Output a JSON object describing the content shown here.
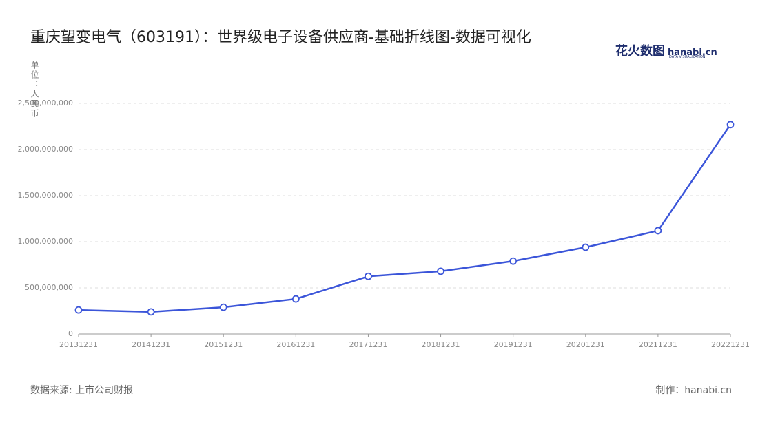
{
  "chart_data": {
    "type": "line",
    "title": "重庆望变电气（603191）：世界级电子设备供应商-基础折线图-数据可视化",
    "y_axis_label": "单位：人民币",
    "logo": "花火数图",
    "logo_sub": "hanabi.cn",
    "logo_tagline": "DATA VISUALIZATION",
    "source": "数据来源: 上市公司财报",
    "credit": "制作：hanabi.cn",
    "categories": [
      "20131231",
      "20141231",
      "20151231",
      "20161231",
      "20171231",
      "20181231",
      "20191231",
      "20201231",
      "20211231",
      "20221231"
    ],
    "values": [
      260000000,
      240000000,
      290000000,
      380000000,
      625000000,
      680000000,
      790000000,
      940000000,
      1120000000,
      2270000000
    ],
    "color": "#3b55d9",
    "ylim": [
      0,
      2500000000
    ],
    "yticks": [
      0,
      {
        "value": 500000000,
        "label": "500,000,000"
      },
      {
        "value": 1000000000,
        "label": "1,000,000,000"
      },
      {
        "value": 1500000000,
        "label": "1,500,000,000"
      },
      {
        "value": 2000000000,
        "label": "2,000,000,000"
      },
      {
        "value": 2500000000,
        "label": "2,500,000,000"
      }
    ],
    "grid": true
  }
}
